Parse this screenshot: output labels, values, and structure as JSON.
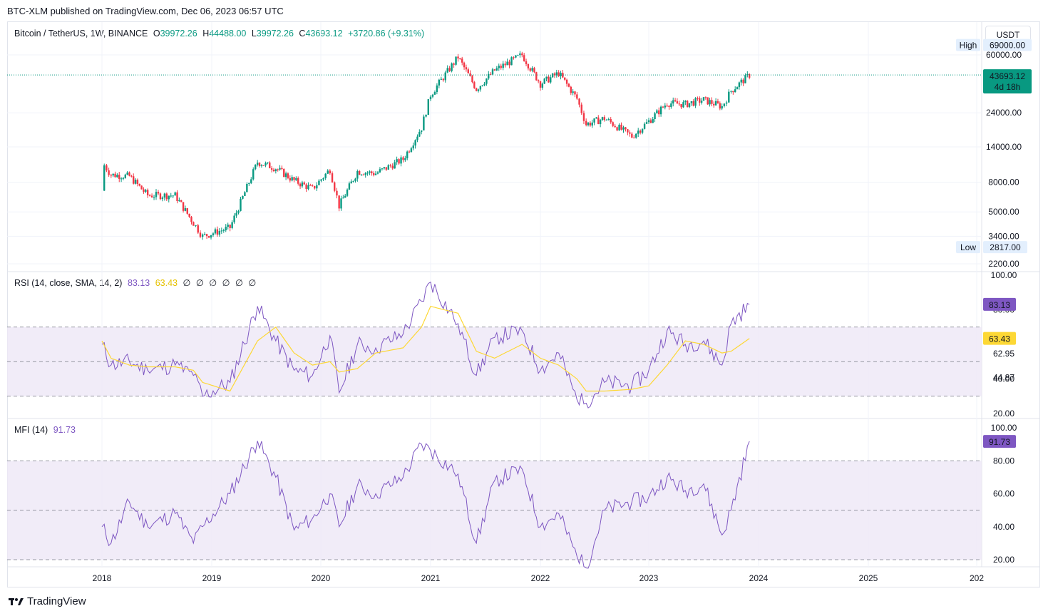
{
  "header": {
    "published": "BTC-XLM published on TradingView.com, Dec 06, 2023 06:57 UTC"
  },
  "main_legend": {
    "symbol": "Bitcoin / TetherUS, 1W, BINANCE",
    "open_label": "O",
    "open": "39972.26",
    "high_label": "H",
    "high": "44488.00",
    "low_label": "L",
    "low": "39972.26",
    "close_label": "C",
    "close": "43693.12",
    "change": "+3720.86 (+9.31%)"
  },
  "currency_button": "USDT",
  "price_axis": {
    "ticks": [
      "60000.00",
      "24000.00",
      "14000.00",
      "8000.00",
      "5000.00",
      "3400.00",
      "2200.00"
    ],
    "high_label": "High",
    "high_value": "69000.00",
    "low_label": "Low",
    "low_value": "2817.00",
    "last_price": "43693.12",
    "countdown": "4d 18h"
  },
  "rsi_legend": {
    "name": "RSI (14, close, SMA, 14, 2)",
    "rsi_value": "83.13",
    "sma_value": "63.43",
    "extras": [
      "∅",
      "∅",
      "∅",
      "∅",
      "∅",
      "∅"
    ]
  },
  "rsi_axis": {
    "ticks": [
      "100.00",
      "80.00",
      "40.00",
      "20.00"
    ],
    "rsi_badge": "83.13",
    "sma_badge": "63.43",
    "bb_upper": "62.95",
    "bb_lower": "44.87"
  },
  "mfi_legend": {
    "name": "MFI (14)",
    "value": "91.73"
  },
  "mfi_axis": {
    "ticks": [
      "100.00",
      "80.00",
      "60.00",
      "40.00",
      "20.00"
    ],
    "badge": "91.73"
  },
  "time_axis": {
    "labels": [
      "2018",
      "2019",
      "2020",
      "2021",
      "2022",
      "2023",
      "2024",
      "2025",
      "202"
    ]
  },
  "footer": {
    "brand": "TradingView"
  },
  "colors": {
    "up": "#089981",
    "down": "#f23645",
    "rsi": "#7e57c2",
    "sma": "#fdd835",
    "band": "#ede7f6"
  },
  "chart_data": [
    {
      "type": "candlestick",
      "title": "Bitcoin / TetherUS, 1W, BINANCE",
      "scale": "log",
      "ylim": [
        2200,
        69000
      ],
      "x": [
        "2017-11",
        "2017-12",
        "2018-01",
        "2018-02",
        "2018-04",
        "2018-06",
        "2018-09",
        "2018-11",
        "2018-12",
        "2019-03",
        "2019-06",
        "2019-08",
        "2019-10",
        "2019-12",
        "2020-02",
        "2020-03",
        "2020-05",
        "2020-07",
        "2020-10",
        "2020-12",
        "2021-01",
        "2021-04",
        "2021-06",
        "2021-08",
        "2021-11",
        "2022-01",
        "2022-03",
        "2022-05",
        "2022-06",
        "2022-08",
        "2022-11",
        "2023-01",
        "2023-03",
        "2023-05",
        "2023-07",
        "2023-09",
        "2023-10",
        "2023-12"
      ],
      "close": [
        7000,
        14000,
        11000,
        9000,
        8800,
        6500,
        6500,
        4200,
        3400,
        3900,
        11000,
        10000,
        8200,
        7200,
        9800,
        5500,
        9500,
        9200,
        11500,
        19000,
        32000,
        58000,
        35000,
        47000,
        60000,
        38000,
        45000,
        30000,
        20000,
        22000,
        16500,
        21000,
        28000,
        27500,
        29500,
        26500,
        34000,
        43693.12
      ]
    },
    {
      "type": "line",
      "title": "RSI (14, close, SMA, 14, 2)",
      "ylim": [
        20,
        100
      ],
      "bands": [
        30,
        50,
        70
      ],
      "series": [
        {
          "name": "RSI",
          "values": [
            75,
            92,
            60,
            48,
            50,
            45,
            48,
            42,
            30,
            38,
            82,
            62,
            45,
            42,
            65,
            32,
            60,
            58,
            66,
            85,
            96,
            72,
            42,
            64,
            68,
            45,
            55,
            28,
            26,
            38,
            36,
            45,
            68,
            60,
            62,
            48,
            72,
            83.13
          ]
        },
        {
          "name": "SMA",
          "values": [
            null,
            null,
            62,
            52,
            48,
            47,
            47,
            45,
            38,
            33,
            62,
            70,
            55,
            48,
            50,
            44,
            46,
            55,
            58,
            70,
            82,
            78,
            56,
            52,
            60,
            52,
            48,
            40,
            33,
            33,
            34,
            36,
            48,
            62,
            60,
            55,
            56,
            63.43
          ]
        }
      ]
    },
    {
      "type": "line",
      "title": "MFI (14)",
      "ylim": [
        20,
        100
      ],
      "bands": [
        20,
        50,
        80
      ],
      "series": [
        {
          "name": "MFI",
          "values": [
            72,
            96,
            40,
            30,
            55,
            40,
            48,
            30,
            40,
            60,
            92,
            70,
            38,
            45,
            60,
            40,
            65,
            60,
            70,
            90,
            86,
            72,
            30,
            68,
            75,
            40,
            48,
            22,
            15,
            50,
            55,
            58,
            70,
            62,
            66,
            35,
            50,
            91.73
          ]
        }
      ]
    }
  ]
}
